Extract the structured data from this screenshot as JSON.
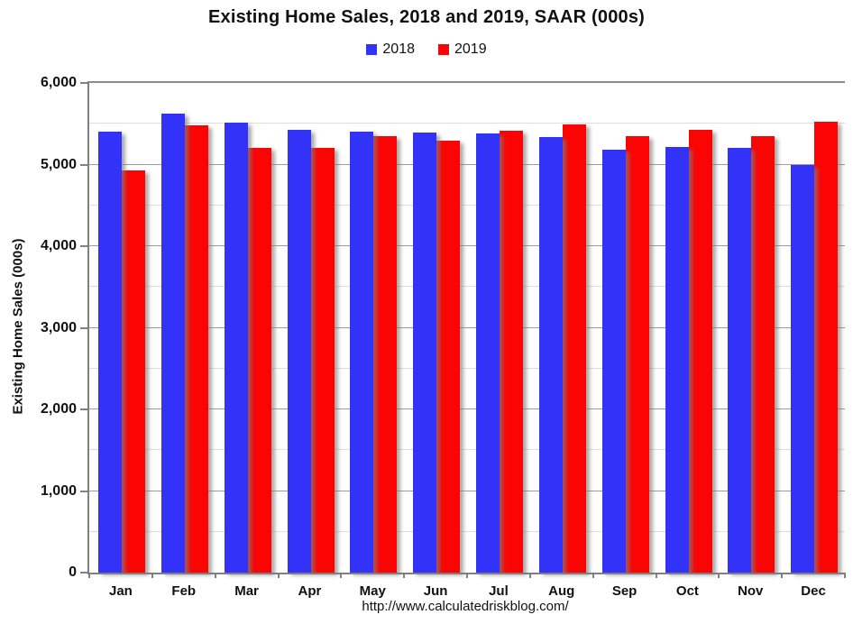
{
  "chart_data": {
    "type": "bar",
    "title": "Existing Home Sales,  2018 and 2019, SAAR (000s)",
    "categories": [
      "Jan",
      "Feb",
      "Mar",
      "Apr",
      "May",
      "Jun",
      "Jul",
      "Aug",
      "Sep",
      "Oct",
      "Nov",
      "Dec"
    ],
    "series": [
      {
        "name": "2018",
        "color": "#3232F8",
        "values": [
          5400,
          5620,
          5510,
          5430,
          5400,
          5390,
          5380,
          5340,
          5180,
          5220,
          5210,
          5000
        ]
      },
      {
        "name": "2019",
        "color": "#FB0404",
        "values": [
          4930,
          5480,
          5210,
          5210,
          5350,
          5290,
          5420,
          5490,
          5350,
          5430,
          5350,
          5530
        ]
      }
    ],
    "xlabel": "",
    "ylabel": "Existing Home Sales (000s)",
    "ylim": [
      0,
      6000
    ],
    "ytick_interval": 1000,
    "minor_gridline_interval": 500,
    "ytick_labels": [
      "0",
      "1,000",
      "2,000",
      "3,000",
      "4,000",
      "5,000",
      "6,000"
    ],
    "grid": true,
    "legend_position": "top",
    "source_url": "http://www.calculatedriskblog.com/"
  },
  "colors": {
    "axis": "#808080",
    "major_gridline": "#9C9C9C",
    "minor_gridline": "#DEDEDE",
    "series_2018": "#3232F8",
    "series_2019": "#FB0404",
    "text": "#111111",
    "background": "#FFFFFF"
  }
}
